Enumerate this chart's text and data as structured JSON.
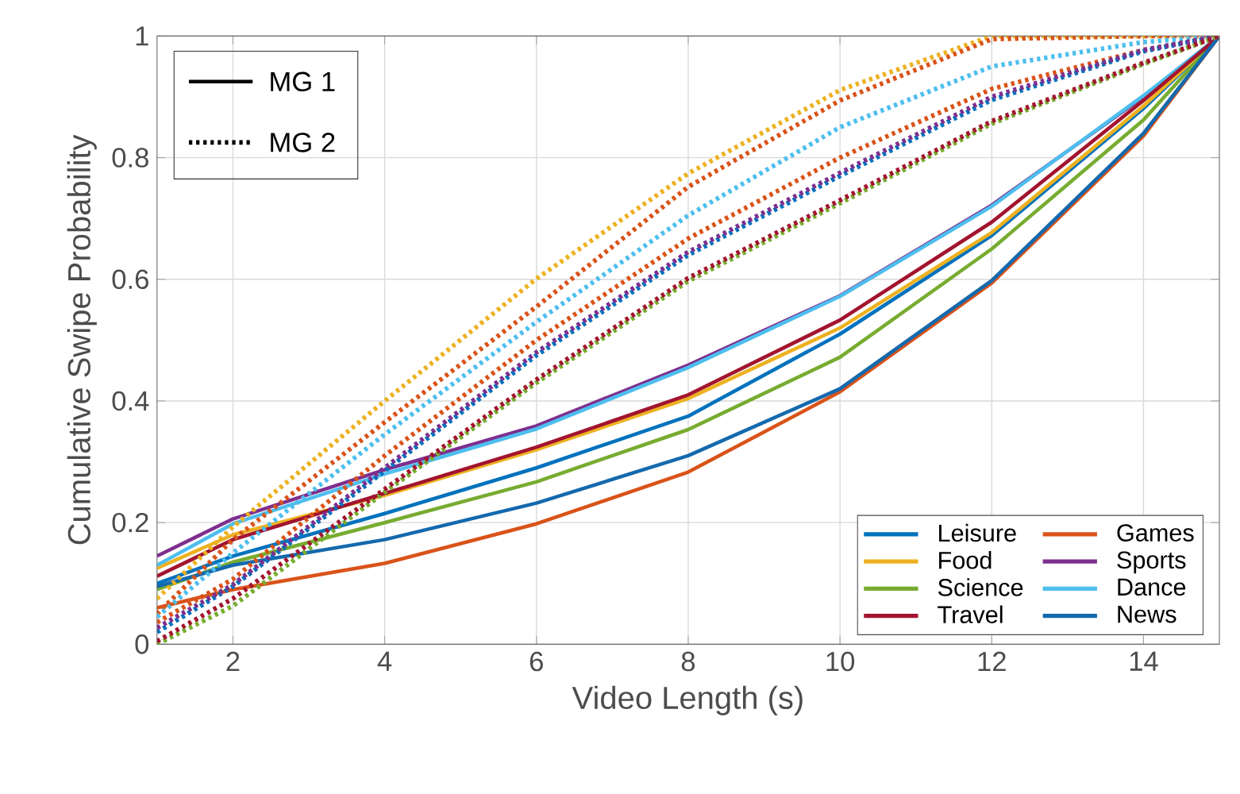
{
  "chart_data": {
    "type": "line",
    "xlabel": "Video Length (s)",
    "ylabel": "Cumulative Swipe Probability",
    "xlim": [
      1,
      15
    ],
    "ylim": [
      0,
      1
    ],
    "xticks": [
      2,
      4,
      6,
      8,
      10,
      12,
      14
    ],
    "yticks": [
      0,
      0.2,
      0.4,
      0.6,
      0.8,
      1
    ],
    "grid": true,
    "legend": "bottom right",
    "marker": "none",
    "annotations": [
      "MG 1",
      "MG 2"
    ],
    "x": [
      1,
      2,
      4,
      6,
      8,
      10,
      12,
      14,
      15
    ],
    "series": [
      {
        "name": "Leisure",
        "color": "#0072bd",
        "line_style": "solid",
        "values": [
          0.1,
          0.145,
          0.215,
          0.29,
          0.375,
          0.51,
          0.672,
          0.881,
          1
        ]
      },
      {
        "name": "Games",
        "color": "#d95319",
        "line_style": "solid",
        "values": [
          0.06,
          0.09,
          0.133,
          0.198,
          0.283,
          0.415,
          0.594,
          0.836,
          1
        ]
      },
      {
        "name": "Food",
        "color": "#edb120",
        "line_style": "solid",
        "values": [
          0.125,
          0.18,
          0.245,
          0.32,
          0.404,
          0.52,
          0.677,
          0.885,
          1
        ]
      },
      {
        "name": "Sports",
        "color": "#7e2f8e",
        "line_style": "solid",
        "values": [
          0.145,
          0.206,
          0.287,
          0.359,
          0.459,
          0.573,
          0.722,
          0.9,
          1
        ]
      },
      {
        "name": "Science",
        "color": "#77ac30",
        "line_style": "solid",
        "values": [
          0.09,
          0.135,
          0.2,
          0.267,
          0.353,
          0.472,
          0.65,
          0.862,
          1
        ]
      },
      {
        "name": "Dance",
        "color": "#4dbeee",
        "line_style": "solid",
        "values": [
          0.13,
          0.198,
          0.28,
          0.354,
          0.455,
          0.572,
          0.72,
          0.902,
          1
        ]
      },
      {
        "name": "Travel",
        "color": "#a2142f",
        "line_style": "solid",
        "values": [
          0.112,
          0.172,
          0.248,
          0.324,
          0.41,
          0.533,
          0.694,
          0.894,
          1
        ]
      },
      {
        "name": "News",
        "color": "#1469ad",
        "line_style": "solid",
        "values": [
          0.095,
          0.13,
          0.172,
          0.232,
          0.31,
          0.42,
          0.598,
          0.84,
          1
        ]
      },
      {
        "color": "#edb120",
        "line_style": "dotted",
        "values": [
          0.075,
          0.193,
          0.4,
          0.601,
          0.774,
          0.911,
          1,
          1,
          1
        ]
      },
      {
        "color": "#d95319",
        "line_style": "dotted",
        "values": [
          0.05,
          0.172,
          0.365,
          0.555,
          0.752,
          0.894,
          0.995,
          1,
          1
        ]
      },
      {
        "color": "#4dbeee",
        "line_style": "dotted",
        "values": [
          0.045,
          0.15,
          0.345,
          0.53,
          0.705,
          0.85,
          0.95,
          0.99,
          1
        ]
      },
      {
        "color": "#d95319",
        "line_style": "dotted",
        "values": [
          0.036,
          0.107,
          0.31,
          0.5,
          0.667,
          0.8,
          0.913,
          0.977,
          1
        ]
      },
      {
        "color": "#0072bd",
        "line_style": "dotted",
        "values": [
          0.02,
          0.095,
          0.285,
          0.475,
          0.64,
          0.77,
          0.895,
          0.975,
          1
        ]
      },
      {
        "color": "#7e2f8e",
        "line_style": "dotted",
        "values": [
          0.027,
          0.098,
          0.29,
          0.48,
          0.645,
          0.775,
          0.9,
          0.977,
          1
        ]
      },
      {
        "color": "#77ac30",
        "line_style": "dotted",
        "values": [
          0.0,
          0.063,
          0.25,
          0.43,
          0.597,
          0.725,
          0.856,
          0.954,
          1
        ]
      },
      {
        "color": "#a2142f",
        "line_style": "dotted",
        "values": [
          0.005,
          0.075,
          0.255,
          0.435,
          0.602,
          0.73,
          0.86,
          0.956,
          1
        ]
      }
    ]
  }
}
